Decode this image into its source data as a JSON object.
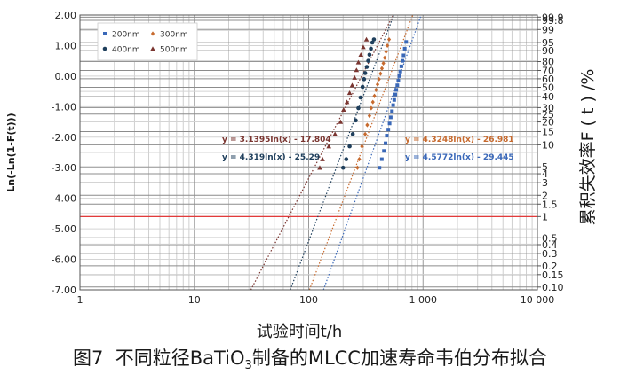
{
  "chart_data": {
    "type": "scatter",
    "xlabel": "试验时间t/h",
    "ylabel_left": "Ln(-Ln(1-F(t)))",
    "ylabel_right": "累积失效率F ( t ) /%",
    "x_scale": "log",
    "xlim": [
      1,
      10000
    ],
    "ylim": [
      -7.0,
      2.0
    ],
    "x_ticks": [
      "1",
      "10",
      "100",
      "1 000",
      "10 000"
    ],
    "y_ticks": [
      "2.00",
      "1.00",
      "0.00",
      "-1.00",
      "-2.00",
      "-3.00",
      "-4.00",
      "-5.00",
      "-6.00",
      "-7.00"
    ],
    "right_ticks": [
      "99.9",
      "99.8",
      "99",
      "95",
      "90",
      "80",
      "70",
      "60",
      "50",
      "40",
      "30",
      "25",
      "20",
      "15",
      "10",
      "5",
      "4",
      "3",
      "2",
      "1.5",
      "1",
      "0.5",
      "0.4",
      "0.3",
      "0.2",
      "0.15",
      "0.10"
    ],
    "grid": true,
    "legend_position": "top-left",
    "reference_line": {
      "percent": 1,
      "color": "#e33b3b"
    },
    "series": [
      {
        "name": "200nm",
        "color": "#3a68b8",
        "marker": "square",
        "fit_label": "y = 4.5772ln(x) - 29.445",
        "slope": 4.5772,
        "intercept": -29.445,
        "points": [
          [
            416,
            -3.0
          ],
          [
            436,
            -2.72
          ],
          [
            455,
            -2.45
          ],
          [
            470,
            -2.2
          ],
          [
            482,
            -1.95
          ],
          [
            497,
            -1.75
          ],
          [
            510,
            -1.55
          ],
          [
            522,
            -1.35
          ],
          [
            535,
            -1.15
          ],
          [
            548,
            -0.95
          ],
          [
            560,
            -0.78
          ],
          [
            572,
            -0.6
          ],
          [
            583,
            -0.45
          ],
          [
            596,
            -0.3
          ],
          [
            608,
            -0.15
          ],
          [
            620,
            0.0
          ],
          [
            633,
            0.15
          ],
          [
            646,
            0.32
          ],
          [
            660,
            0.5
          ],
          [
            676,
            0.68
          ],
          [
            692,
            0.9
          ],
          [
            712,
            1.12
          ]
        ]
      },
      {
        "name": "300nm",
        "color": "#c76a2e",
        "marker": "diamond",
        "fit_label": "y = 4.3248ln(x) - 26.981",
        "slope": 4.3248,
        "intercept": -26.981,
        "points": [
          [
            267,
            -3.0
          ],
          [
            277,
            -2.72
          ],
          [
            292,
            -2.3
          ],
          [
            312,
            -1.9
          ],
          [
            325,
            -1.6
          ],
          [
            340,
            -1.3
          ],
          [
            352,
            -1.05
          ],
          [
            364,
            -0.85
          ],
          [
            376,
            -0.65
          ],
          [
            388,
            -0.45
          ],
          [
            400,
            -0.27
          ],
          [
            412,
            -0.1
          ],
          [
            425,
            0.08
          ],
          [
            437,
            0.25
          ],
          [
            450,
            0.42
          ],
          [
            462,
            0.6
          ],
          [
            475,
            0.8
          ],
          [
            488,
            1.0
          ],
          [
            505,
            1.2
          ]
        ]
      },
      {
        "name": "400nm",
        "color": "#1f3f5c",
        "marker": "circle",
        "fit_label": "y = 4.319ln(x) - 25.29",
        "slope": 4.319,
        "intercept": -25.29,
        "points": [
          [
            200,
            -3.0
          ],
          [
            213,
            -2.72
          ],
          [
            228,
            -2.3
          ],
          [
            243,
            -1.9
          ],
          [
            258,
            -1.45
          ],
          [
            272,
            -1.05
          ],
          [
            284,
            -0.7
          ],
          [
            296,
            -0.35
          ],
          [
            305,
            -0.1
          ],
          [
            312,
            0.1
          ],
          [
            322,
            0.3
          ],
          [
            332,
            0.5
          ],
          [
            340,
            0.7
          ],
          [
            350,
            0.9
          ],
          [
            360,
            1.1
          ],
          [
            372,
            1.2
          ]
        ]
      },
      {
        "name": "500nm",
        "color": "#7a3530",
        "marker": "triangle",
        "fit_label": "y = 3.1395ln(x) - 17.804",
        "slope": 3.1395,
        "intercept": -17.804,
        "points": [
          [
            125,
            -3.0
          ],
          [
            132,
            -2.72
          ],
          [
            150,
            -2.3
          ],
          [
            170,
            -1.9
          ],
          [
            190,
            -1.5
          ],
          [
            202,
            -1.1
          ],
          [
            216,
            -0.85
          ],
          [
            228,
            -0.55
          ],
          [
            240,
            -0.3
          ],
          [
            252,
            -0.05
          ],
          [
            262,
            0.2
          ],
          [
            272,
            0.45
          ],
          [
            286,
            0.7
          ],
          [
            300,
            0.95
          ],
          [
            320,
            1.2
          ]
        ]
      }
    ]
  }
}
